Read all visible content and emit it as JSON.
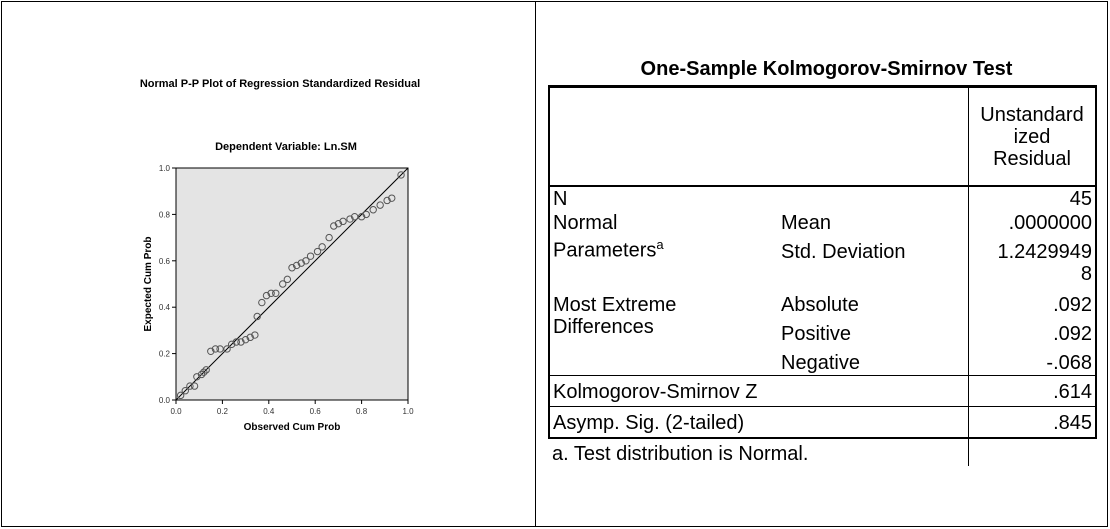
{
  "chart_data": {
    "type": "scatter",
    "title": "Normal P-P Plot of Regression Standardized Residual",
    "subtitle": "Dependent Variable: Ln.SM",
    "xlabel": "Observed Cum Prob",
    "ylabel": "Expected Cum Prob",
    "xlim": [
      0,
      1
    ],
    "ylim": [
      0,
      1
    ],
    "xticks": [
      "0.0",
      "0.2",
      "0.4",
      "0.6",
      "0.8",
      "1.0"
    ],
    "yticks": [
      "0.0",
      "0.2",
      "0.4",
      "0.6",
      "0.8",
      "1.0"
    ],
    "reference_line": [
      [
        0,
        0
      ],
      [
        1,
        1
      ]
    ],
    "grid": false,
    "points": [
      [
        0.02,
        0.02
      ],
      [
        0.04,
        0.04
      ],
      [
        0.06,
        0.06
      ],
      [
        0.08,
        0.06
      ],
      [
        0.09,
        0.1
      ],
      [
        0.11,
        0.11
      ],
      [
        0.12,
        0.12
      ],
      [
        0.13,
        0.13
      ],
      [
        0.15,
        0.21
      ],
      [
        0.17,
        0.22
      ],
      [
        0.19,
        0.22
      ],
      [
        0.22,
        0.22
      ],
      [
        0.24,
        0.24
      ],
      [
        0.26,
        0.25
      ],
      [
        0.28,
        0.25
      ],
      [
        0.3,
        0.26
      ],
      [
        0.32,
        0.27
      ],
      [
        0.34,
        0.28
      ],
      [
        0.35,
        0.36
      ],
      [
        0.37,
        0.42
      ],
      [
        0.39,
        0.45
      ],
      [
        0.41,
        0.46
      ],
      [
        0.43,
        0.46
      ],
      [
        0.46,
        0.5
      ],
      [
        0.48,
        0.52
      ],
      [
        0.5,
        0.57
      ],
      [
        0.52,
        0.58
      ],
      [
        0.54,
        0.59
      ],
      [
        0.56,
        0.6
      ],
      [
        0.58,
        0.62
      ],
      [
        0.61,
        0.64
      ],
      [
        0.63,
        0.66
      ],
      [
        0.66,
        0.7
      ],
      [
        0.68,
        0.75
      ],
      [
        0.7,
        0.76
      ],
      [
        0.72,
        0.77
      ],
      [
        0.75,
        0.78
      ],
      [
        0.77,
        0.79
      ],
      [
        0.8,
        0.79
      ],
      [
        0.82,
        0.8
      ],
      [
        0.85,
        0.82
      ],
      [
        0.88,
        0.84
      ],
      [
        0.91,
        0.86
      ],
      [
        0.93,
        0.87
      ],
      [
        0.97,
        0.97
      ]
    ],
    "colors": {
      "plot_bg": "#e4e4e4",
      "point_stroke": "#555555",
      "line": "#000000"
    }
  },
  "table": {
    "title": "One-Sample Kolmogorov-Smirnov Test",
    "header_col3": [
      "Unstandard",
      "ized",
      "Residual"
    ],
    "rows": {
      "n_label": "N",
      "n_value": "45",
      "normal_label": "Normal",
      "normal_label2": "Parameters",
      "normal_sup": "a",
      "mean_label": "Mean",
      "mean_value": ".0000000",
      "sd_label": "Std. Deviation",
      "sd_value_line1": "1.2429949",
      "sd_value_line2": "8",
      "extreme_label": "Most Extreme",
      "extreme_label2": "Differences",
      "absolute_label": "Absolute",
      "absolute_value": ".092",
      "positive_label": "Positive",
      "positive_value": ".092",
      "negative_label": "Negative",
      "negative_value": "-.068",
      "ksz_label": "Kolmogorov-Smirnov Z",
      "ksz_value": ".614",
      "sig_label": "Asymp. Sig. (2-tailed)",
      "sig_value": ".845"
    },
    "footnote": "a. Test distribution is Normal."
  }
}
